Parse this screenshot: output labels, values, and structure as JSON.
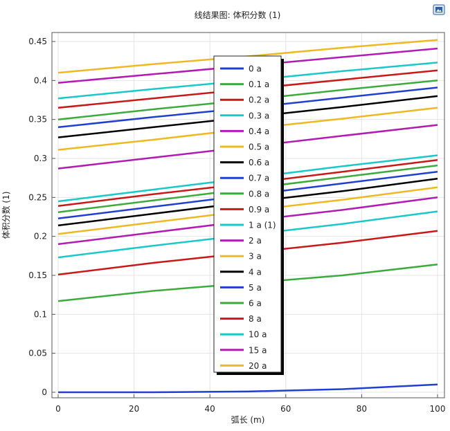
{
  "chart_data": {
    "type": "line",
    "title": "线结果图: 体积分数 (1)",
    "xlabel": "弧长 (m)",
    "ylabel": "体积分数 (1)",
    "xlim": [
      0,
      100
    ],
    "ylim": [
      0,
      0.45
    ],
    "x_ticks": [
      "0",
      "20",
      "40",
      "60",
      "80",
      "100"
    ],
    "y_ticks": [
      "0",
      "0.05",
      "0.1",
      "0.15",
      "0.2",
      "0.25",
      "0.3",
      "0.35",
      "0.4",
      "0.45"
    ],
    "grid": true,
    "legend_position": "center",
    "x": [
      0,
      25,
      50,
      75,
      100
    ],
    "series": [
      {
        "name": "0 a",
        "color": "#1f3fd0",
        "values": [
          0.0,
          0.0,
          0.001,
          0.004,
          0.01
        ]
      },
      {
        "name": "0.1 a",
        "color": "#3bab3b",
        "values": [
          0.117,
          0.13,
          0.14,
          0.15,
          0.164
        ]
      },
      {
        "name": "0.2 a",
        "color": "#c81818",
        "values": [
          0.151,
          0.166,
          0.179,
          0.192,
          0.207
        ]
      },
      {
        "name": "0.3 a",
        "color": "#19c8c8",
        "values": [
          0.173,
          0.188,
          0.202,
          0.216,
          0.232
        ]
      },
      {
        "name": "0.4 a",
        "color": "#b21bb2",
        "values": [
          0.19,
          0.205,
          0.22,
          0.234,
          0.25
        ]
      },
      {
        "name": "0.5 a",
        "color": "#f0b820",
        "values": [
          0.203,
          0.218,
          0.233,
          0.247,
          0.263
        ]
      },
      {
        "name": "0.6 a",
        "color": "#000000",
        "values": [
          0.214,
          0.229,
          0.244,
          0.258,
          0.274
        ]
      },
      {
        "name": "0.7 a",
        "color": "#1f3fd0",
        "values": [
          0.223,
          0.238,
          0.253,
          0.268,
          0.283
        ]
      },
      {
        "name": "0.8 a",
        "color": "#3bab3b",
        "values": [
          0.231,
          0.246,
          0.261,
          0.276,
          0.291
        ]
      },
      {
        "name": "0.9 a",
        "color": "#c81818",
        "values": [
          0.239,
          0.254,
          0.268,
          0.283,
          0.298
        ]
      },
      {
        "name": "1 a (1)",
        "color": "#19c8c8",
        "values": [
          0.245,
          0.26,
          0.275,
          0.29,
          0.304
        ]
      },
      {
        "name": "2 a",
        "color": "#b21bb2",
        "values": [
          0.287,
          0.301,
          0.315,
          0.329,
          0.343
        ]
      },
      {
        "name": "3 a",
        "color": "#f0b820",
        "values": [
          0.311,
          0.324,
          0.338,
          0.351,
          0.365
        ]
      },
      {
        "name": "4 a",
        "color": "#000000",
        "values": [
          0.327,
          0.34,
          0.353,
          0.366,
          0.38
        ]
      },
      {
        "name": "5 a",
        "color": "#1f3fd0",
        "values": [
          0.34,
          0.353,
          0.365,
          0.378,
          0.391
        ]
      },
      {
        "name": "6 a",
        "color": "#3bab3b",
        "values": [
          0.35,
          0.363,
          0.375,
          0.388,
          0.4
        ]
      },
      {
        "name": "8 a",
        "color": "#c81818",
        "values": [
          0.365,
          0.377,
          0.389,
          0.401,
          0.413
        ]
      },
      {
        "name": "10 a",
        "color": "#19c8c8",
        "values": [
          0.377,
          0.389,
          0.4,
          0.412,
          0.423
        ]
      },
      {
        "name": "15 a",
        "color": "#b21bb2",
        "values": [
          0.397,
          0.408,
          0.419,
          0.43,
          0.441
        ]
      },
      {
        "name": "20 a",
        "color": "#f0b820",
        "values": [
          0.41,
          0.421,
          0.431,
          0.442,
          0.452
        ]
      }
    ]
  },
  "toolbar": {
    "icon": "image-export-icon",
    "accent": "#2a5fa8"
  }
}
